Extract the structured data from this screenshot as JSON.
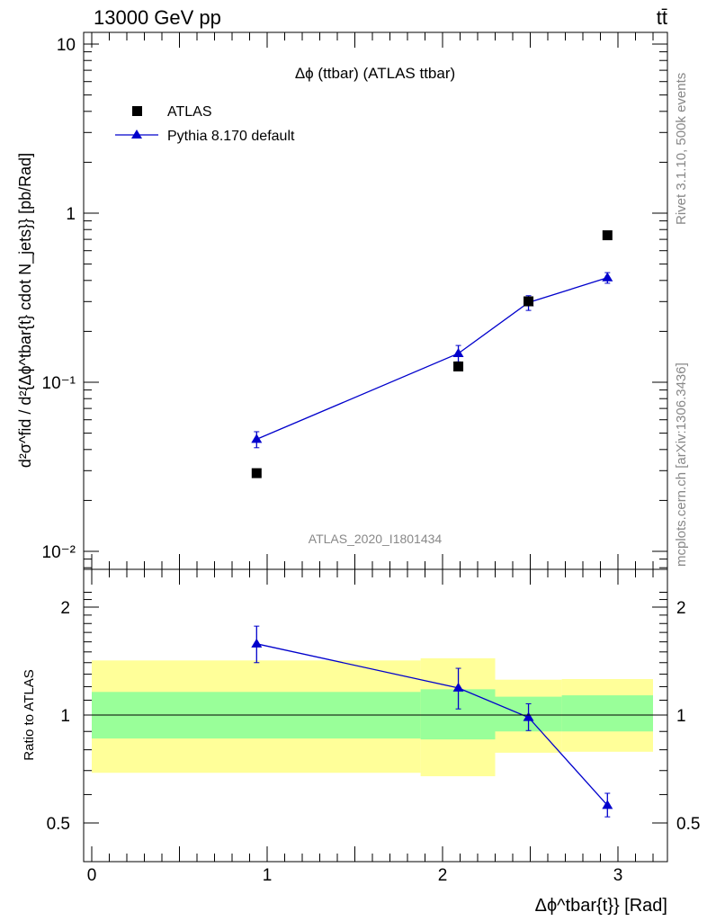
{
  "header": {
    "left": "13000 GeV pp",
    "right": "tt̄"
  },
  "side_labels": {
    "rivet": "Rivet 3.1.10,  500k events",
    "mcplots": "mcplots.cern.ch [arXiv:1306.3436]"
  },
  "chart_data": [
    {
      "type": "scatter",
      "panel": "main",
      "title": "Δϕ (ttbar) (ATLAS ttbar)",
      "watermark": "ATLAS_2020_I1801434",
      "ylabel": "d²σ^fid / d²{Δϕ^tbar{t} cdot N_jets}} [pb/Rad]",
      "yscale": "log",
      "ylim": [
        0.008,
        12
      ],
      "xlim": [
        -0.05,
        3.25
      ],
      "y_ticks": [
        {
          "value": 10,
          "label": "10"
        },
        {
          "value": 1,
          "label": "1"
        },
        {
          "value": 0.1,
          "label": "10⁻¹"
        },
        {
          "value": 0.01,
          "label": "10⁻²"
        }
      ],
      "legend_placement": "top-left",
      "series": [
        {
          "name": "ATLAS",
          "marker": "square",
          "color": "#000000",
          "x": [
            0.94,
            2.09,
            2.49,
            2.94
          ],
          "y": [
            0.029,
            0.124,
            0.301,
            0.74
          ]
        },
        {
          "name": "Pythia 8.170 default",
          "marker": "triangle",
          "color": "#0000cc",
          "x": [
            0.94,
            2.09,
            2.49,
            2.94
          ],
          "y": [
            0.046,
            0.148,
            0.296,
            0.415
          ],
          "err_lo": [
            0.041,
            0.132,
            0.266,
            0.385
          ],
          "err_hi": [
            0.051,
            0.165,
            0.325,
            0.445
          ]
        }
      ]
    },
    {
      "type": "line",
      "panel": "ratio",
      "ylabel": "Ratio to ATLAS",
      "xlabel": "Δϕ^tbar{t}} [Rad]",
      "ylim": [
        0.42,
        2.3
      ],
      "xlim": [
        -0.05,
        3.25
      ],
      "x_ticks": [
        0,
        1,
        2,
        3
      ],
      "y_ticks": [
        0.5,
        1,
        2
      ],
      "bands": [
        {
          "x0": 0.0,
          "x1": 1.875,
          "outer": [
            0.69,
            1.42
          ],
          "inner": [
            0.86,
            1.16
          ]
        },
        {
          "x0": 1.875,
          "x1": 2.3,
          "outer": [
            0.675,
            1.44
          ],
          "inner": [
            0.855,
            1.18
          ]
        },
        {
          "x0": 2.3,
          "x1": 2.68,
          "outer": [
            0.785,
            1.255
          ],
          "inner": [
            0.9,
            1.125
          ]
        },
        {
          "x0": 2.68,
          "x1": 3.2,
          "outer": [
            0.79,
            1.26
          ],
          "inner": [
            0.9,
            1.135
          ]
        }
      ],
      "series": [
        {
          "name": "Pythia 8.170 default",
          "color": "#0000cc",
          "x": [
            0.94,
            2.09,
            2.49,
            2.94
          ],
          "y": [
            1.58,
            1.19,
            0.985,
            0.56
          ],
          "err_lo": [
            1.4,
            1.04,
            0.905,
            0.52
          ],
          "err_hi": [
            1.77,
            1.35,
            1.075,
            0.605
          ]
        }
      ]
    }
  ],
  "colors": {
    "band_outer": "#ffff99",
    "band_inner": "#99ff99",
    "mc": "#0000cc",
    "data": "#000000"
  }
}
